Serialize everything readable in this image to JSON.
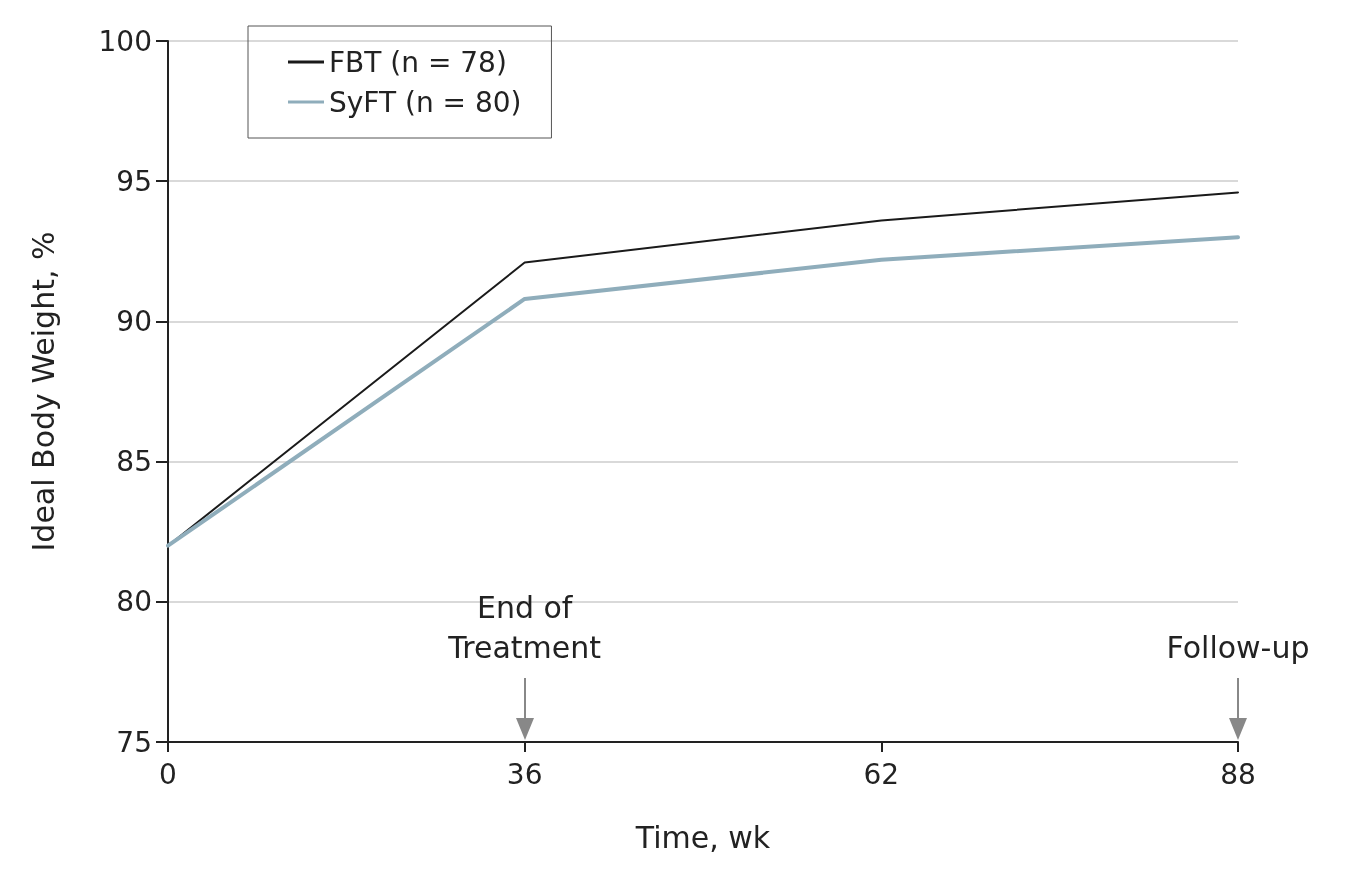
{
  "chart_data": {
    "type": "line",
    "xlabel": "Time, wk",
    "ylabel": "Ideal Body Weight, %",
    "categories": [
      "0",
      "36",
      "62",
      "88"
    ],
    "series": [
      {
        "name": "FBT (n = 78)",
        "color": "#1a1a1a",
        "values": [
          82,
          92.1,
          93.6,
          94.6
        ]
      },
      {
        "name": "SyFT (n = 80)",
        "color": "#8fadbb",
        "values": [
          82,
          90.8,
          92.2,
          93.0
        ]
      }
    ],
    "ylim": [
      75,
      100
    ],
    "yticks": [
      75,
      80,
      85,
      90,
      95,
      100
    ],
    "grid": "y",
    "legend": "top left",
    "marker": "none",
    "line_style": "solid",
    "annotations": [
      "End of Treatment",
      "Follow-up"
    ]
  }
}
